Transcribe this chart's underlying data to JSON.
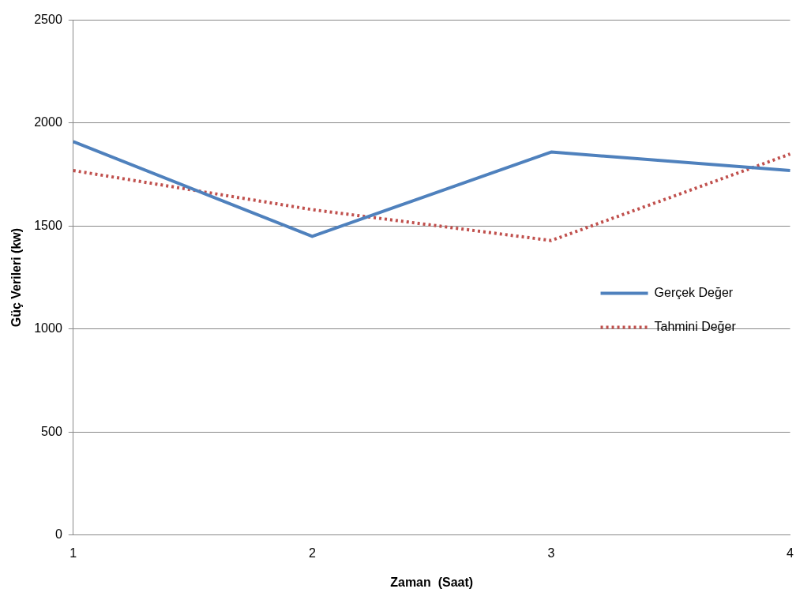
{
  "chart_data": {
    "type": "line",
    "xlabel": "Zaman  (Saat)",
    "ylabel": "Güç Verileri (kw)",
    "categories": [
      "1",
      "2",
      "3",
      "4"
    ],
    "series": [
      {
        "name": "Gerçek Değer",
        "color": "#4f81bd",
        "line_style": "solid",
        "values": [
          1910,
          1450,
          1860,
          1770
        ]
      },
      {
        "name": "Tahmini Değer",
        "color": "#c0504d",
        "line_style": "dotted",
        "values": [
          1770,
          1580,
          1430,
          1850
        ]
      }
    ],
    "ylim": [
      0,
      2500
    ],
    "yticks": [
      0,
      500,
      1000,
      1500,
      2000,
      2500
    ],
    "grid": "y",
    "legend": "right",
    "marker": "none"
  }
}
